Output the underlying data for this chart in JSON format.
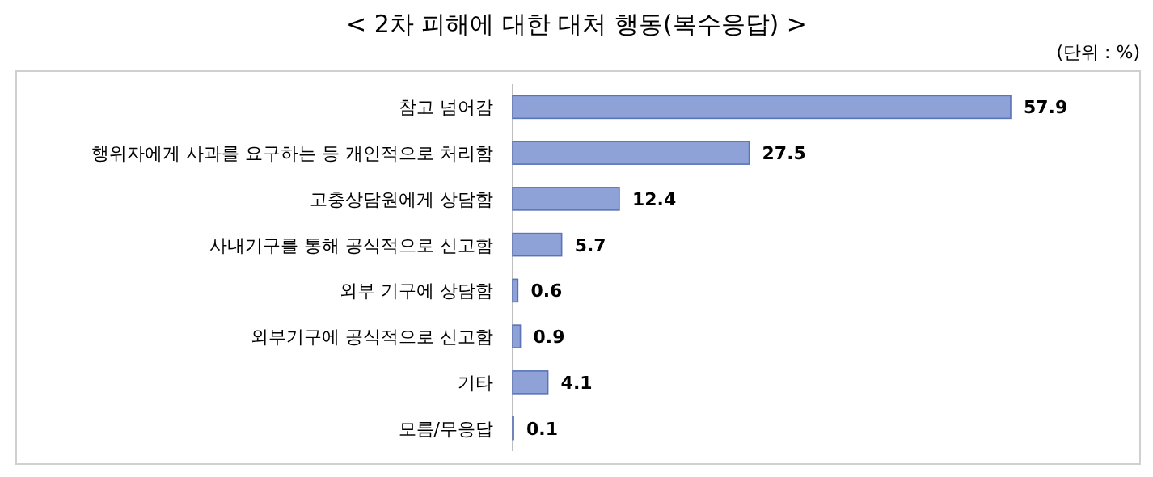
{
  "chart_data": {
    "type": "bar",
    "orientation": "horizontal",
    "title": "< 2차 피해에 대한 대처 행동(복수응답) >",
    "annotations": [
      "(단위 : %)"
    ],
    "categories": [
      "참고 넘어감",
      "행위자에게 사과를 요구하는 등 개인적으로 처리함",
      "고충상담원에게 상담함",
      "사내기구를 통해 공식적으로 신고함",
      "외부 기구에 상담함",
      "외부기구에 공식적으로 신고함",
      "기타",
      "모름/무응답"
    ],
    "values": [
      57.9,
      27.5,
      12.4,
      5.7,
      0.6,
      0.9,
      4.1,
      0.1
    ],
    "color": "#8ea2d8",
    "data_labels": true
  }
}
